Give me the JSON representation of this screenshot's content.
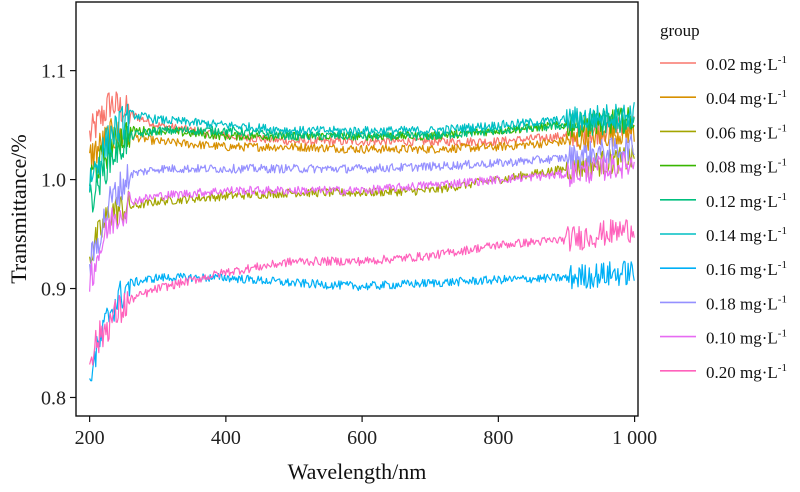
{
  "chart_data": {
    "type": "line",
    "xlabel": "Wavelength/nm",
    "ylabel": "Transmittance/%",
    "xlim": [
      180,
      1005
    ],
    "ylim": [
      0.783,
      1.163
    ],
    "x_ticks": [
      200,
      400,
      600,
      800,
      1000
    ],
    "x_tick_labels": [
      "200",
      "400",
      "600",
      "800",
      "1 000"
    ],
    "y_ticks": [
      0.8,
      0.9,
      1.0,
      1.1
    ],
    "y_tick_labels": [
      "0.8",
      "0.9",
      "1.0",
      "1.1"
    ],
    "grid": false,
    "legend_title": "group",
    "legend_placement": "right",
    "unit_base": "mg·L",
    "unit_sup": "-1",
    "series": [
      {
        "name": "0.02",
        "color": "#F8766D",
        "x": [
          200,
          230,
          260,
          300,
          400,
          500,
          600,
          700,
          800,
          900,
          1000
        ],
        "y": [
          1.04,
          1.07,
          1.06,
          1.05,
          1.04,
          1.035,
          1.035,
          1.035,
          1.035,
          1.04,
          1.05
        ]
      },
      {
        "name": "0.04",
        "color": "#D89000",
        "x": [
          200,
          230,
          260,
          300,
          400,
          500,
          600,
          700,
          800,
          900,
          1000
        ],
        "y": [
          1.02,
          1.04,
          1.04,
          1.035,
          1.03,
          1.03,
          1.028,
          1.028,
          1.03,
          1.035,
          1.045
        ]
      },
      {
        "name": "0.06",
        "color": "#A3A500",
        "x": [
          200,
          230,
          260,
          300,
          400,
          500,
          600,
          700,
          800,
          900,
          1000
        ],
        "y": [
          0.93,
          0.97,
          0.975,
          0.98,
          0.985,
          0.988,
          0.988,
          0.99,
          1.0,
          1.01,
          1.02
        ]
      },
      {
        "name": "0.08",
        "color": "#39B600",
        "x": [
          200,
          230,
          260,
          300,
          400,
          500,
          600,
          700,
          800,
          900,
          1000
        ],
        "y": [
          1.0,
          1.03,
          1.045,
          1.045,
          1.04,
          1.04,
          1.04,
          1.04,
          1.045,
          1.05,
          1.055
        ]
      },
      {
        "name": "0.12",
        "color": "#00BF7D",
        "x": [
          200,
          230,
          260,
          300,
          400,
          500,
          600,
          700,
          800,
          900,
          1000
        ],
        "y": [
          0.98,
          1.02,
          1.04,
          1.045,
          1.045,
          1.04,
          1.04,
          1.04,
          1.045,
          1.05,
          1.055
        ]
      },
      {
        "name": "0.14",
        "color": "#00BFC4",
        "x": [
          200,
          230,
          260,
          300,
          400,
          500,
          600,
          700,
          800,
          900,
          1000
        ],
        "y": [
          1.0,
          1.04,
          1.06,
          1.055,
          1.05,
          1.045,
          1.045,
          1.045,
          1.05,
          1.055,
          1.06
        ]
      },
      {
        "name": "0.16",
        "color": "#00B0F6",
        "x": [
          200,
          230,
          260,
          300,
          400,
          500,
          600,
          700,
          800,
          900,
          1000
        ],
        "y": [
          0.82,
          0.88,
          0.905,
          0.91,
          0.91,
          0.905,
          0.902,
          0.905,
          0.908,
          0.91,
          0.915
        ]
      },
      {
        "name": "0.18",
        "color": "#9590FF",
        "x": [
          200,
          230,
          260,
          300,
          400,
          500,
          600,
          700,
          800,
          900,
          1000
        ],
        "y": [
          0.92,
          0.98,
          1.005,
          1.01,
          1.01,
          1.01,
          1.01,
          1.012,
          1.015,
          1.02,
          1.03
        ]
      },
      {
        "name": "0.10",
        "color": "#E76BF3",
        "x": [
          200,
          230,
          260,
          300,
          400,
          500,
          600,
          700,
          800,
          900,
          1000
        ],
        "y": [
          0.91,
          0.96,
          0.98,
          0.985,
          0.99,
          0.99,
          0.99,
          0.995,
          1.0,
          1.005,
          1.015
        ]
      },
      {
        "name": "0.20",
        "color": "#FF62BC",
        "x": [
          200,
          230,
          260,
          300,
          400,
          500,
          600,
          700,
          800,
          900,
          1000
        ],
        "y": [
          0.84,
          0.87,
          0.89,
          0.9,
          0.915,
          0.925,
          0.925,
          0.93,
          0.94,
          0.945,
          0.955
        ]
      }
    ]
  }
}
